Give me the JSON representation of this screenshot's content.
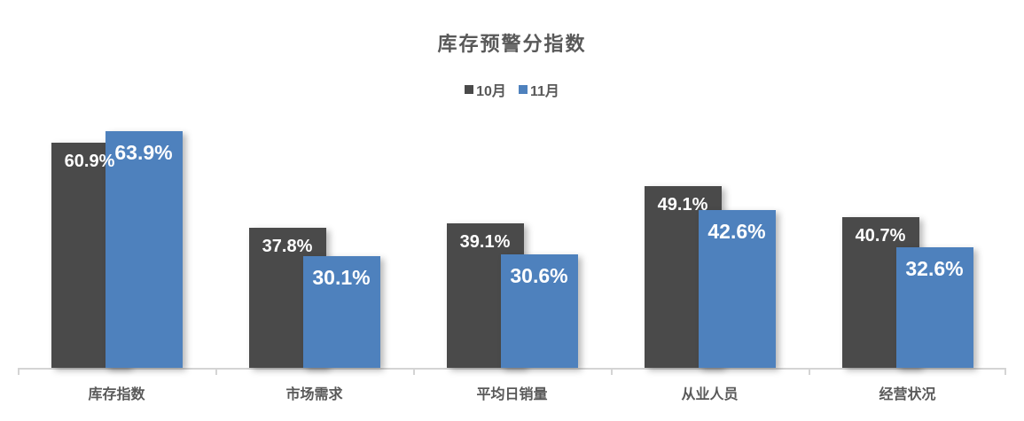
{
  "chart_data": {
    "type": "bar",
    "title": "库存预警分指数",
    "categories": [
      "库存指数",
      "市场需求",
      "平均日销量",
      "从业人员",
      "经营状况"
    ],
    "series": [
      {
        "name": "10月",
        "color": "#4a4a4a",
        "values": [
          60.9,
          37.8,
          39.1,
          49.1,
          40.7
        ]
      },
      {
        "name": "11月",
        "color": "#4e81bd",
        "values": [
          63.9,
          30.1,
          30.6,
          42.6,
          32.6
        ]
      }
    ],
    "value_suffix": "%",
    "value_labels_shown": true,
    "ylim": [
      0,
      70
    ],
    "grid": false,
    "legend_position": "top",
    "xlabel": "",
    "ylabel": ""
  },
  "colors": {
    "series_october": "#4a4a4a",
    "series_november": "#4e81bd",
    "title_text": "#595959",
    "category_text": "#595959",
    "legend_text": "#595959",
    "axis_line": "#d4d4d4",
    "value_label_text": "#ffffff",
    "background": "#ffffff"
  }
}
